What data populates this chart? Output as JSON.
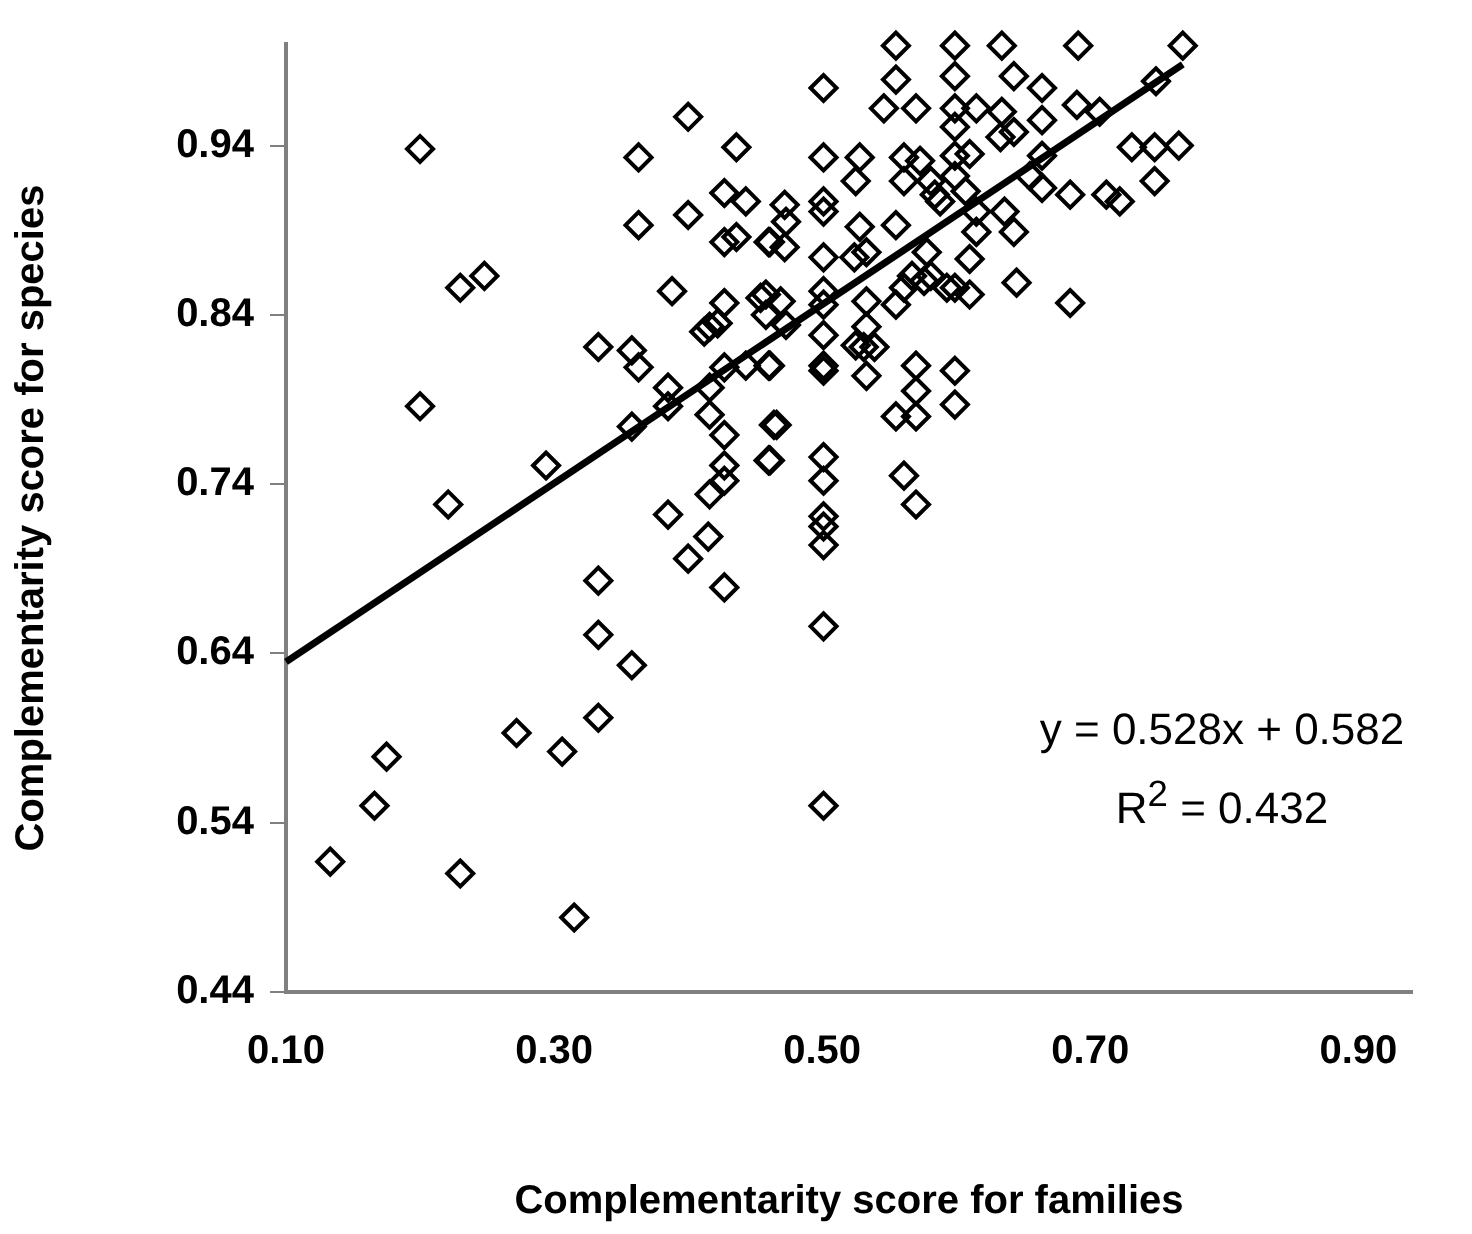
{
  "chart_data": {
    "type": "scatter",
    "xlabel": "Complementarity score for families",
    "ylabel": "Complementarity score for species",
    "xlim": [
      0.1,
      0.94
    ],
    "ylim": [
      0.44,
      1.0
    ],
    "xticks": [
      {
        "value": 0.1,
        "label": "0.10"
      },
      {
        "value": 0.3,
        "label": "0.30"
      },
      {
        "value": 0.5,
        "label": "0.50"
      },
      {
        "value": 0.7,
        "label": "0.70"
      },
      {
        "value": 0.9,
        "label": "0.90"
      }
    ],
    "yticks": [
      0.44,
      0.54,
      0.64,
      0.74,
      0.84,
      0.94
    ],
    "grid": false,
    "legend": false,
    "marker": "diamond",
    "annotations": [
      "y = 0.528x + 0.582",
      "R$^{2}$ = 0.432"
    ],
    "series": [
      {
        "color": "#000000",
        "x": [
          0.2,
          0.4,
          0.436,
          0.363,
          0.427,
          0.443,
          0.4,
          0.363,
          0.427,
          0.436,
          0.46,
          0.23,
          0.248,
          0.388,
          0.427,
          0.454,
          0.412,
          0.416,
          0.422,
          0.333,
          0.358,
          0.363,
          0.427,
          0.443,
          0.46,
          0.385,
          0.416,
          0.385,
          0.358,
          0.416,
          0.427,
          0.464,
          0.2,
          0.427,
          0.416,
          0.427,
          0.46,
          0.294,
          0.221,
          0.385,
          0.555,
          0.599,
          0.634,
          0.691,
          0.501,
          0.555,
          0.599,
          0.643,
          0.664,
          0.546,
          0.57,
          0.599,
          0.615,
          0.634,
          0.664,
          0.69,
          0.707,
          0.599,
          0.643,
          0.633,
          0.501,
          0.528,
          0.561,
          0.573,
          0.599,
          0.61,
          0.664,
          0.731,
          0.748,
          0.525,
          0.561,
          0.581,
          0.599,
          0.655,
          0.748,
          0.472,
          0.501,
          0.501,
          0.584,
          0.607,
          0.664,
          0.685,
          0.712,
          0.722,
          0.473,
          0.461,
          0.472,
          0.555,
          0.528,
          0.588,
          0.615,
          0.636,
          0.615,
          0.643,
          0.501,
          0.533,
          0.524,
          0.578,
          0.61,
          0.567,
          0.561,
          0.581,
          0.576,
          0.593,
          0.599,
          0.61,
          0.645,
          0.685,
          0.458,
          0.469,
          0.501,
          0.501,
          0.533,
          0.555,
          0.458,
          0.473,
          0.501,
          0.533,
          0.525,
          0.531,
          0.539,
          0.461,
          0.501,
          0.501,
          0.533,
          0.57,
          0.599,
          0.57,
          0.599,
          0.555,
          0.57,
          0.466,
          0.461,
          0.501,
          0.501,
          0.561,
          0.57,
          0.501,
          0.769,
          0.749,
          0.766,
          0.415,
          0.4,
          0.427,
          0.333,
          0.333,
          0.358,
          0.333,
          0.272,
          0.306,
          0.175,
          0.166,
          0.133,
          0.23,
          0.315,
          0.501,
          0.501,
          0.501,
          0.501
        ],
        "values": [
          0.938,
          0.957,
          0.939,
          0.933,
          0.912,
          0.907,
          0.899,
          0.893,
          0.883,
          0.886,
          0.883,
          0.856,
          0.863,
          0.854,
          0.847,
          0.85,
          0.83,
          0.833,
          0.835,
          0.821,
          0.819,
          0.809,
          0.809,
          0.81,
          0.81,
          0.797,
          0.797,
          0.786,
          0.774,
          0.781,
          0.769,
          0.775,
          0.786,
          0.751,
          0.734,
          0.742,
          0.754,
          0.751,
          0.728,
          0.722,
          0.999,
          0.999,
          0.999,
          0.999,
          0.974,
          0.979,
          0.981,
          0.981,
          0.974,
          0.962,
          0.962,
          0.962,
          0.962,
          0.96,
          0.955,
          0.964,
          0.96,
          0.951,
          0.948,
          0.945,
          0.933,
          0.933,
          0.933,
          0.931,
          0.934,
          0.935,
          0.934,
          0.939,
          0.939,
          0.919,
          0.919,
          0.919,
          0.922,
          0.922,
          0.919,
          0.905,
          0.907,
          0.901,
          0.911,
          0.913,
          0.915,
          0.911,
          0.911,
          0.907,
          0.895,
          0.883,
          0.88,
          0.893,
          0.892,
          0.907,
          0.901,
          0.901,
          0.889,
          0.889,
          0.874,
          0.877,
          0.874,
          0.877,
          0.873,
          0.863,
          0.856,
          0.863,
          0.86,
          0.856,
          0.856,
          0.852,
          0.859,
          0.847,
          0.852,
          0.848,
          0.854,
          0.846,
          0.848,
          0.846,
          0.84,
          0.834,
          0.828,
          0.833,
          0.822,
          0.821,
          0.821,
          0.81,
          0.81,
          0.807,
          0.804,
          0.81,
          0.807,
          0.795,
          0.787,
          0.78,
          0.78,
          0.775,
          0.754,
          0.756,
          0.742,
          0.745,
          0.728,
          0.721,
          0.999,
          0.978,
          0.94,
          0.709,
          0.696,
          0.679,
          0.683,
          0.651,
          0.633,
          0.602,
          0.593,
          0.582,
          0.579,
          0.55,
          0.517,
          0.51,
          0.484,
          0.715,
          0.704,
          0.656,
          0.55
        ]
      },
      {
        "type": "line",
        "color": "#000000",
        "marker": "none",
        "x": [
          0.1,
          0.769
        ],
        "values": [
          0.635,
          0.988
        ]
      }
    ]
  }
}
